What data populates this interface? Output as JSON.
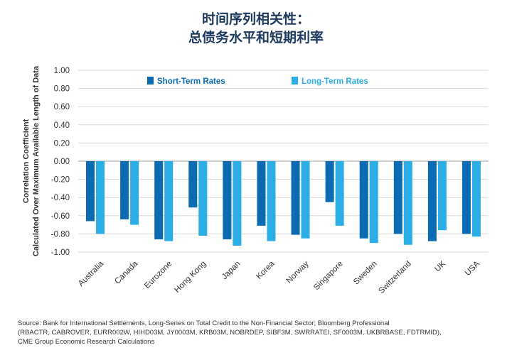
{
  "title_line1": "时间序列相关性：",
  "title_line2": "总债务水平和短期利率",
  "source_lines": [
    "Source: Bank for International Settlements, Long-Series on Total Credit to the Non-Financial Sector; Bloomberg Professional",
    "(RBACTR, CABROVER, EURR002W, HIHD03M, JY0003M, KRB03M, NOBRDEP, SIBF3M, SWRRATEI, SF0003M, UKBRBASE, FDTRMID),",
    "CME Group Economic Research Calculations"
  ],
  "colors": {
    "short": "#0a6ab2",
    "long": "#2aaee5",
    "grid": "#d9d9d9",
    "title": "#1f3a5f",
    "text": "#333333"
  },
  "chart_data": {
    "type": "bar",
    "title": "时间序列相关性：总债务水平和短期利率",
    "ylabel_line1": "Correlation Coefficient",
    "ylabel_line2": "Calculated Over Maximum Available Length of Data",
    "ylim": [
      -1.0,
      1.0
    ],
    "yticks": [
      "1.00",
      "0.80",
      "0.60",
      "0.40",
      "0.20",
      "0.00",
      "-0.20",
      "-0.40",
      "-0.60",
      "-0.80",
      "-1.00"
    ],
    "legend_position": "top",
    "grid": true,
    "categories": [
      "Australia",
      "Canada",
      "Eurozone",
      "Hong Kong",
      "Japan",
      "Korea",
      "Norway",
      "Singapore",
      "Sweden",
      "Switzerland",
      "UK",
      "USA"
    ],
    "series": [
      {
        "name": "Short-Term Rates",
        "values": [
          -0.66,
          -0.64,
          -0.86,
          -0.51,
          -0.86,
          -0.71,
          -0.81,
          -0.45,
          -0.85,
          -0.8,
          -0.88,
          -0.8
        ]
      },
      {
        "name": "Long-Term Rates",
        "values": [
          -0.8,
          -0.7,
          -0.88,
          -0.82,
          -0.93,
          -0.88,
          -0.85,
          -0.71,
          -0.9,
          -0.92,
          -0.76,
          -0.83
        ]
      }
    ]
  }
}
